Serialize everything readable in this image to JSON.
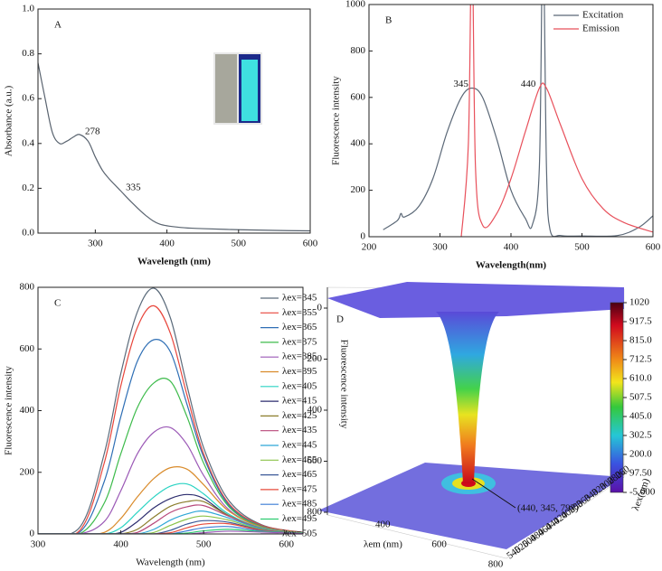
{
  "chart_data": [
    {
      "type": "line",
      "panel": "A",
      "xlabel": "Wavelength (nm)",
      "ylabel": "Absorbance (a.u.)",
      "xlim": [
        220,
        600
      ],
      "xticks": [
        300,
        400,
        500,
        600
      ],
      "ylim": [
        0,
        1
      ],
      "yticks": [
        {
          "value": 0,
          "label": "0.0"
        },
        0.2,
        0.4,
        0.6,
        0.8,
        {
          "value": 1,
          "label": "1.0"
        }
      ],
      "x": [
        220,
        230,
        240,
        250,
        260,
        270,
        278,
        290,
        300,
        310,
        320,
        335,
        350,
        370,
        390,
        420,
        450,
        500,
        550,
        600
      ],
      "series": [
        {
          "color": "#59636f",
          "values": [
            0.76,
            0.6,
            0.45,
            0.4,
            0.41,
            0.43,
            0.44,
            0.41,
            0.34,
            0.28,
            0.24,
            0.19,
            0.14,
            0.08,
            0.04,
            0.025,
            0.02,
            0.015,
            0.012,
            0.01
          ]
        }
      ],
      "annotations": [
        {
          "text": "278",
          "x": 278,
          "y": 0.44
        },
        {
          "text": "335",
          "x": 335,
          "y": 0.19
        }
      ]
    },
    {
      "type": "line",
      "panel": "B",
      "xlabel": "Wavelength(nm)",
      "ylabel": "Fluorescence intensity",
      "xlim": [
        200,
        600
      ],
      "xticks": [
        200,
        300,
        400,
        500,
        600
      ],
      "ylim": [
        0,
        1000
      ],
      "yticks": [
        0,
        200,
        400,
        600,
        800,
        1000
      ],
      "legend": "upper right",
      "series": [
        {
          "name": "Excitation",
          "color": "#5b6877",
          "x": [
            220,
            240,
            245,
            250,
            270,
            290,
            310,
            330,
            345,
            360,
            380,
            400,
            420,
            430,
            440,
            445,
            450,
            455,
            470,
            500,
            550,
            580,
            600
          ],
          "values": [
            30,
            70,
            100,
            85,
            130,
            250,
            450,
            600,
            640,
            600,
            420,
            200,
            80,
            50,
            300,
            1300,
            300,
            30,
            5,
            3,
            5,
            40,
            90
          ]
        },
        {
          "name": "Emission",
          "color": "#e8505b",
          "x": [
            330,
            340,
            345,
            350,
            360,
            380,
            400,
            420,
            440,
            450,
            470,
            500,
            530,
            560,
            600
          ],
          "values": [
            0,
            400,
            1300,
            300,
            50,
            100,
            250,
            450,
            640,
            640,
            480,
            250,
            120,
            60,
            20
          ]
        }
      ],
      "annotations": [
        {
          "text": "345",
          "x": 345,
          "y": 640
        },
        {
          "text": "440",
          "x": 440,
          "y": 640
        }
      ]
    },
    {
      "type": "line",
      "panel": "C",
      "xlabel": "Wavelength (nm)",
      "ylabel": "Fluorescence intensity",
      "xlim": [
        300,
        620
      ],
      "xticks": [
        300,
        400,
        500,
        600
      ],
      "ylim": [
        0,
        800
      ],
      "yticks": [
        0,
        200,
        400,
        600,
        800
      ],
      "legend": "upper right",
      "x": [
        300,
        350,
        380,
        400,
        420,
        440,
        460,
        480,
        500,
        530,
        570,
        620
      ],
      "series": [
        {
          "name": "λex=345",
          "color": "#5b6b7b",
          "values": [
            0,
            20,
            260,
            520,
            720,
            797,
            700,
            480,
            280,
            110,
            30,
            5
          ]
        },
        {
          "name": "λex=355",
          "color": "#e8463c",
          "values": [
            0,
            10,
            230,
            480,
            670,
            740,
            650,
            450,
            260,
            100,
            28,
            5
          ]
        },
        {
          "name": "λex=365",
          "color": "#2f6fb5",
          "values": [
            0,
            5,
            170,
            380,
            560,
            630,
            590,
            420,
            250,
            95,
            25,
            4
          ]
        },
        {
          "name": "λex=375",
          "color": "#3dbb4b",
          "values": [
            0,
            0,
            100,
            260,
            410,
            490,
            495,
            380,
            230,
            90,
            24,
            4
          ]
        },
        {
          "name": "λex=385",
          "color": "#9b59b6",
          "values": [
            0,
            0,
            40,
            140,
            260,
            330,
            345,
            290,
            190,
            80,
            22,
            4
          ]
        },
        {
          "name": "λex=395",
          "color": "#d98b2b",
          "values": [
            0,
            0,
            5,
            50,
            120,
            180,
            215,
            210,
            160,
            75,
            22,
            4
          ]
        },
        {
          "name": "λex=405",
          "color": "#2ad3c3",
          "values": [
            0,
            0,
            0,
            20,
            70,
            120,
            155,
            162,
            130,
            65,
            20,
            3
          ]
        },
        {
          "name": "λex=415",
          "color": "#2c2c6e",
          "values": [
            0,
            0,
            0,
            5,
            40,
            85,
            115,
            128,
            115,
            60,
            18,
            3
          ]
        },
        {
          "name": "λex=425",
          "color": "#8b7d2b",
          "values": [
            0,
            0,
            0,
            0,
            15,
            55,
            90,
            105,
            105,
            60,
            18,
            3
          ]
        },
        {
          "name": "λex=435",
          "color": "#b8487a",
          "values": [
            0,
            0,
            0,
            0,
            5,
            35,
            70,
            88,
            92,
            58,
            18,
            3
          ]
        },
        {
          "name": "λex=445",
          "color": "#2fa7d6",
          "values": [
            0,
            0,
            0,
            0,
            0,
            15,
            45,
            65,
            74,
            52,
            17,
            3
          ]
        },
        {
          "name": "λex=455",
          "color": "#8bc34a",
          "values": [
            0,
            0,
            0,
            0,
            0,
            5,
            28,
            48,
            58,
            45,
            15,
            3
          ]
        },
        {
          "name": "λex=465",
          "color": "#3b5998",
          "values": [
            0,
            0,
            0,
            0,
            0,
            0,
            12,
            32,
            43,
            38,
            13,
            2
          ]
        },
        {
          "name": "λex=475",
          "color": "#e74c3c",
          "values": [
            0,
            0,
            0,
            0,
            0,
            0,
            4,
            20,
            32,
            33,
            12,
            2
          ]
        },
        {
          "name": "λex=485",
          "color": "#3a7bd5",
          "values": [
            0,
            0,
            0,
            0,
            0,
            0,
            0,
            10,
            20,
            24,
            10,
            2
          ]
        },
        {
          "name": "λex=495",
          "color": "#2ecc71",
          "values": [
            0,
            0,
            0,
            0,
            0,
            0,
            0,
            3,
            10,
            15,
            8,
            2
          ]
        },
        {
          "name": "λex=505",
          "color": "#9b59b6",
          "values": [
            0,
            0,
            0,
            0,
            0,
            0,
            0,
            0,
            4,
            9,
            6,
            1
          ]
        }
      ]
    },
    {
      "type": "surface",
      "panel": "D",
      "xlabel": "λem (nm)",
      "ylabel": "λex(nm)",
      "zlabel": "Fluorescence intensity",
      "xlim": [
        300,
        800
      ],
      "xticks": [
        400,
        600,
        800
      ],
      "ylim": [
        260,
        540
      ],
      "yticks": [
        260,
        280,
        300,
        320,
        340,
        360,
        380,
        400,
        420,
        440,
        460,
        480,
        500,
        520,
        540
      ],
      "zlim": [
        0,
        800
      ],
      "zticks": [
        0,
        200,
        400,
        600,
        800
      ],
      "clim": [
        -5,
        1020
      ],
      "cticks": [
        1020,
        917.5,
        {
          "value": 815,
          "label": "815.0"
        },
        712.5,
        {
          "value": 610,
          "label": "610.0"
        },
        507.5,
        {
          "value": 405,
          "label": "405.0"
        },
        302.5,
        {
          "value": 200,
          "label": "200.0"
        },
        {
          "value": 97.5,
          "label": "97.50"
        },
        {
          "value": -5,
          "label": "-5.000"
        }
      ],
      "annotation": "(440, 345, 797)"
    }
  ]
}
